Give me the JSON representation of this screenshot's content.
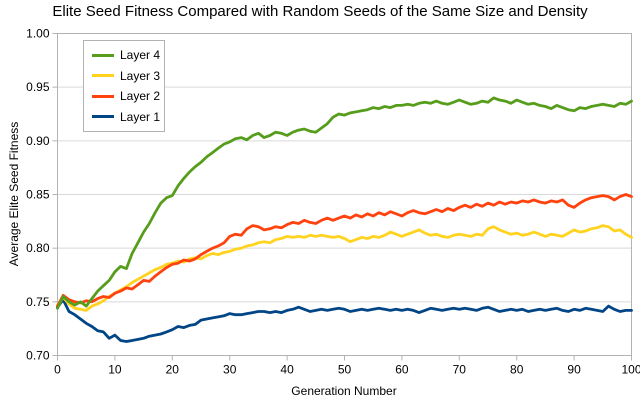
{
  "colors": {
    "background": "#ffffff",
    "grid": "#d9d9d9",
    "axis": "#b3b3b3",
    "text": "#000000"
  },
  "chart_data": {
    "type": "line",
    "title": "Elite Seed Fitness Compared with Random Seeds of the Same Size and Density",
    "xlabel": "Generation Number",
    "ylabel": "Average Elite Seed Fitness",
    "xlim": [
      0,
      100
    ],
    "ylim": [
      0.7,
      1.0
    ],
    "x_ticks": [
      0,
      10,
      20,
      30,
      40,
      50,
      60,
      70,
      80,
      90,
      100
    ],
    "y_ticks": [
      "1.00",
      "0.95",
      "0.90",
      "0.85",
      "0.80",
      "0.75",
      "0.70"
    ],
    "grid": "horizontal-only",
    "legend_position": "top-left",
    "legend_order": [
      "Layer 4",
      "Layer 3",
      "Layer 2",
      "Layer 1"
    ],
    "draw_order": [
      "Layer 1",
      "Layer 3",
      "Layer 2",
      "Layer 4"
    ],
    "x_step": 1,
    "series": [
      {
        "name": "Layer 4",
        "color": "#579D1C",
        "values": [
          0.744,
          0.755,
          0.75,
          0.747,
          0.75,
          0.746,
          0.753,
          0.76,
          0.765,
          0.77,
          0.778,
          0.783,
          0.781,
          0.795,
          0.805,
          0.815,
          0.823,
          0.833,
          0.842,
          0.847,
          0.849,
          0.858,
          0.865,
          0.871,
          0.876,
          0.88,
          0.885,
          0.889,
          0.893,
          0.897,
          0.899,
          0.902,
          0.903,
          0.901,
          0.905,
          0.907,
          0.903,
          0.905,
          0.908,
          0.907,
          0.905,
          0.908,
          0.91,
          0.911,
          0.909,
          0.908,
          0.912,
          0.916,
          0.922,
          0.925,
          0.924,
          0.926,
          0.927,
          0.928,
          0.929,
          0.931,
          0.93,
          0.932,
          0.931,
          0.933,
          0.933,
          0.934,
          0.933,
          0.935,
          0.936,
          0.935,
          0.937,
          0.935,
          0.934,
          0.936,
          0.938,
          0.936,
          0.934,
          0.935,
          0.937,
          0.936,
          0.94,
          0.938,
          0.937,
          0.935,
          0.938,
          0.936,
          0.934,
          0.935,
          0.933,
          0.932,
          0.93,
          0.933,
          0.931,
          0.929,
          0.928,
          0.931,
          0.93,
          0.932,
          0.933,
          0.934,
          0.933,
          0.932,
          0.935,
          0.934,
          0.937
        ]
      },
      {
        "name": "Layer 3",
        "color": "#FFD320",
        "values": [
          0.747,
          0.754,
          0.748,
          0.744,
          0.743,
          0.742,
          0.746,
          0.748,
          0.751,
          0.755,
          0.758,
          0.761,
          0.764,
          0.768,
          0.771,
          0.774,
          0.777,
          0.78,
          0.782,
          0.785,
          0.786,
          0.788,
          0.787,
          0.79,
          0.791,
          0.79,
          0.793,
          0.795,
          0.794,
          0.796,
          0.797,
          0.799,
          0.8,
          0.802,
          0.803,
          0.805,
          0.806,
          0.805,
          0.808,
          0.809,
          0.811,
          0.81,
          0.811,
          0.81,
          0.812,
          0.811,
          0.812,
          0.811,
          0.81,
          0.811,
          0.809,
          0.806,
          0.808,
          0.81,
          0.809,
          0.811,
          0.81,
          0.812,
          0.815,
          0.813,
          0.811,
          0.813,
          0.815,
          0.817,
          0.814,
          0.812,
          0.813,
          0.811,
          0.81,
          0.812,
          0.813,
          0.812,
          0.811,
          0.813,
          0.812,
          0.818,
          0.82,
          0.817,
          0.815,
          0.813,
          0.814,
          0.812,
          0.813,
          0.815,
          0.813,
          0.811,
          0.813,
          0.812,
          0.811,
          0.814,
          0.817,
          0.815,
          0.816,
          0.818,
          0.819,
          0.821,
          0.82,
          0.816,
          0.817,
          0.813,
          0.81
        ]
      },
      {
        "name": "Layer 2",
        "color": "#FF420E",
        "values": [
          0.746,
          0.756,
          0.752,
          0.75,
          0.749,
          0.751,
          0.75,
          0.753,
          0.755,
          0.754,
          0.758,
          0.76,
          0.763,
          0.762,
          0.766,
          0.77,
          0.769,
          0.774,
          0.778,
          0.782,
          0.785,
          0.786,
          0.789,
          0.788,
          0.79,
          0.794,
          0.797,
          0.8,
          0.802,
          0.805,
          0.811,
          0.813,
          0.812,
          0.818,
          0.821,
          0.82,
          0.817,
          0.818,
          0.82,
          0.819,
          0.822,
          0.824,
          0.823,
          0.826,
          0.824,
          0.823,
          0.826,
          0.828,
          0.826,
          0.828,
          0.83,
          0.828,
          0.831,
          0.829,
          0.832,
          0.83,
          0.833,
          0.831,
          0.834,
          0.832,
          0.83,
          0.833,
          0.835,
          0.833,
          0.832,
          0.834,
          0.836,
          0.834,
          0.837,
          0.835,
          0.838,
          0.84,
          0.838,
          0.841,
          0.839,
          0.842,
          0.84,
          0.843,
          0.841,
          0.843,
          0.842,
          0.844,
          0.843,
          0.845,
          0.843,
          0.842,
          0.844,
          0.843,
          0.845,
          0.84,
          0.838,
          0.842,
          0.845,
          0.847,
          0.848,
          0.849,
          0.848,
          0.845,
          0.848,
          0.85,
          0.848
        ]
      },
      {
        "name": "Layer 1",
        "color": "#004586",
        "values": [
          0.745,
          0.752,
          0.741,
          0.738,
          0.734,
          0.73,
          0.727,
          0.723,
          0.722,
          0.716,
          0.719,
          0.714,
          0.713,
          0.714,
          0.715,
          0.716,
          0.718,
          0.719,
          0.72,
          0.722,
          0.724,
          0.727,
          0.726,
          0.728,
          0.729,
          0.733,
          0.734,
          0.735,
          0.736,
          0.737,
          0.739,
          0.738,
          0.738,
          0.739,
          0.74,
          0.741,
          0.741,
          0.74,
          0.741,
          0.74,
          0.742,
          0.743,
          0.745,
          0.743,
          0.741,
          0.742,
          0.743,
          0.742,
          0.743,
          0.744,
          0.743,
          0.741,
          0.742,
          0.743,
          0.742,
          0.743,
          0.744,
          0.743,
          0.742,
          0.743,
          0.742,
          0.743,
          0.742,
          0.74,
          0.742,
          0.744,
          0.743,
          0.742,
          0.743,
          0.744,
          0.743,
          0.744,
          0.743,
          0.742,
          0.744,
          0.745,
          0.743,
          0.741,
          0.742,
          0.743,
          0.742,
          0.743,
          0.741,
          0.742,
          0.743,
          0.742,
          0.743,
          0.744,
          0.742,
          0.741,
          0.743,
          0.742,
          0.744,
          0.743,
          0.742,
          0.741,
          0.746,
          0.743,
          0.741,
          0.742,
          0.742
        ]
      }
    ]
  }
}
